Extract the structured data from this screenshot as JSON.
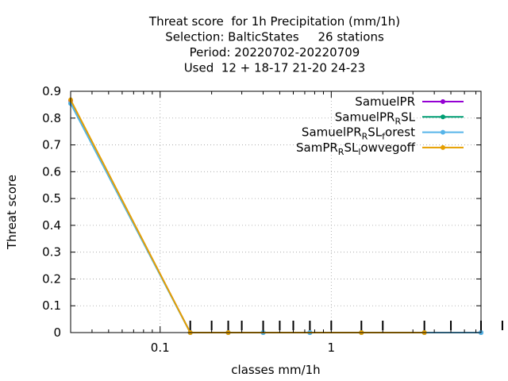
{
  "chart_data": {
    "type": "line",
    "title_lines": [
      "Threat score  for 1h Precipitation (mm/1h)",
      "Selection: BalticStates     26 stations",
      "Period: 20220702-20220709",
      "Used  12 + 18-17 21-20 24-23"
    ],
    "xlabel": "classes mm/1h",
    "ylabel": "Threat score",
    "x_scale": "log",
    "xlim": [
      0.03,
      7.5
    ],
    "ylim": [
      0,
      0.9
    ],
    "y_ticks": [
      "0",
      "0.1",
      "0.2",
      "0.3",
      "0.4",
      "0.5",
      "0.6",
      "0.7",
      "0.8",
      "0.9"
    ],
    "x_ticks": [
      {
        "value": 0.1,
        "label": "0.1"
      },
      {
        "value": 1,
        "label": "1"
      }
    ],
    "grid": true,
    "legend_position": "top-right",
    "series": [
      {
        "name": "SamuelPR",
        "color": "#9400d3",
        "x": [
          0.03,
          0.15,
          0.25,
          0.4,
          0.75,
          1.5,
          3.5,
          7.5
        ],
        "y": [
          0.865,
          0,
          0,
          0,
          0,
          0,
          0,
          0
        ]
      },
      {
        "name": "SamuelPR_RSL",
        "color": "#009e73",
        "x": [
          0.03,
          0.15,
          0.25,
          0.4,
          0.75,
          1.5,
          3.5,
          7.5
        ],
        "y": [
          0.855,
          0,
          0,
          0,
          0,
          0,
          0,
          0
        ]
      },
      {
        "name": "SamuelPR_RSL_forest",
        "color": "#56b4e9",
        "x": [
          0.03,
          0.15,
          0.25,
          0.4,
          0.75,
          1.5,
          3.5,
          7.5
        ],
        "y": [
          0.855,
          0,
          0,
          0,
          0,
          0,
          0,
          0
        ]
      },
      {
        "name": "SamPR_RSL_lowvegoff",
        "color": "#e69f00",
        "x": [
          0.03,
          0.15,
          0.25,
          1.5,
          3.5
        ],
        "y": [
          0.868,
          0,
          0,
          0,
          0
        ]
      }
    ],
    "legend": [
      {
        "parts": [
          {
            "t": "SamuelPR",
            "sub": false
          }
        ]
      },
      {
        "parts": [
          {
            "t": "SamuelPR",
            "sub": false
          },
          {
            "t": "R",
            "sub": true
          },
          {
            "t": "SL",
            "sub": false
          }
        ]
      },
      {
        "parts": [
          {
            "t": "SamuelPR",
            "sub": false
          },
          {
            "t": "R",
            "sub": true
          },
          {
            "t": "SL",
            "sub": false
          },
          {
            "t": "f",
            "sub": true
          },
          {
            "t": "orest",
            "sub": false
          }
        ]
      },
      {
        "parts": [
          {
            "t": "SamPR",
            "sub": false
          },
          {
            "t": "R",
            "sub": true
          },
          {
            "t": "SL",
            "sub": false
          },
          {
            "t": "l",
            "sub": true
          },
          {
            "t": "owvegoff",
            "sub": false
          }
        ]
      }
    ],
    "obs_markers": [
      0.15,
      0.2,
      0.25,
      0.3,
      0.4,
      0.5,
      0.6,
      0.75,
      1.0,
      1.5,
      2.0,
      3.5,
      5.0,
      7.5,
      10
    ]
  }
}
